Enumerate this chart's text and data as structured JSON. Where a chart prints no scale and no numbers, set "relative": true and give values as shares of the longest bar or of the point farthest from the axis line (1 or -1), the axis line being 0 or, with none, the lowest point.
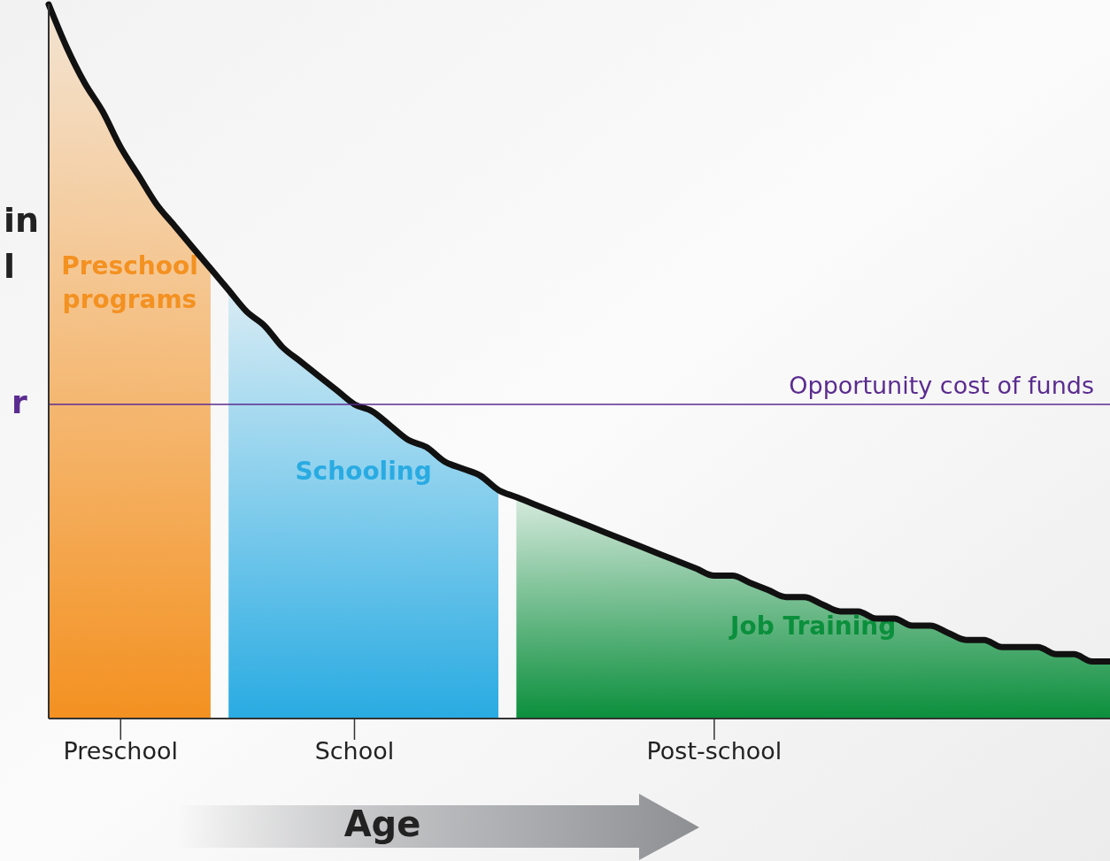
{
  "chart_data": {
    "type": "area",
    "relative": true,
    "ylabel": "in\nl",
    "xlabel": "Age",
    "categories": [
      null,
      null,
      null,
      null,
      "Preschool",
      null,
      null,
      null,
      null,
      null,
      null,
      null,
      null,
      null,
      null,
      null,
      null,
      "School",
      null,
      null,
      null,
      null,
      null,
      null,
      null,
      null,
      null,
      null,
      null,
      null,
      null,
      null,
      null,
      null,
      null,
      null,
      null,
      "Post-school",
      null,
      null,
      null,
      null,
      null,
      null,
      null,
      null,
      null,
      null,
      null,
      null,
      null,
      null,
      null,
      null,
      null,
      null,
      null,
      null,
      null,
      null
    ],
    "series": [
      {
        "name": "Preschool programs",
        "color": "#f39121",
        "values": [
          1.0,
          0.94,
          0.89,
          0.85,
          0.8,
          0.76,
          0.72,
          0.69,
          0.66,
          0.63,
          null,
          null,
          null,
          null,
          null,
          null,
          null,
          null,
          null,
          null,
          null,
          null,
          null,
          null,
          null,
          null,
          null,
          null,
          null,
          null,
          null,
          null,
          null,
          null,
          null,
          null,
          null,
          null,
          null,
          null,
          null,
          null,
          null,
          null,
          null,
          null,
          null,
          null,
          null,
          null,
          null,
          null,
          null,
          null,
          null,
          null,
          null,
          null,
          null,
          null
        ]
      },
      {
        "name": "Schooling",
        "color": "#29abe2",
        "values": [
          null,
          null,
          null,
          null,
          null,
          null,
          null,
          null,
          null,
          null,
          0.6,
          0.57,
          0.55,
          0.52,
          0.5,
          0.48,
          0.46,
          0.44,
          0.43,
          0.41,
          0.39,
          0.38,
          0.36,
          0.35,
          0.34,
          0.32,
          null,
          null,
          null,
          null,
          null,
          null,
          null,
          null,
          null,
          null,
          null,
          null,
          null,
          null,
          null,
          null,
          null,
          null,
          null,
          null,
          null,
          null,
          null,
          null,
          null,
          null,
          null,
          null,
          null,
          null,
          null,
          null,
          null,
          null
        ]
      },
      {
        "name": "Job Training",
        "color": "#0b8f3c",
        "values": [
          null,
          null,
          null,
          null,
          null,
          null,
          null,
          null,
          null,
          null,
          null,
          null,
          null,
          null,
          null,
          null,
          null,
          null,
          null,
          null,
          null,
          null,
          null,
          null,
          null,
          null,
          0.31,
          0.3,
          0.29,
          0.28,
          0.27,
          0.26,
          0.25,
          0.24,
          0.23,
          0.22,
          0.21,
          0.2,
          0.2,
          0.19,
          0.18,
          0.17,
          0.17,
          0.16,
          0.15,
          0.15,
          0.14,
          0.14,
          0.13,
          0.13,
          0.12,
          0.11,
          0.11,
          0.1,
          0.1,
          0.1,
          0.09,
          0.09,
          0.08,
          0.08
        ]
      },
      {
        "type": "line",
        "color": "#111111",
        "values": [
          1.0,
          0.94,
          0.89,
          0.85,
          0.8,
          0.76,
          0.72,
          0.69,
          0.66,
          0.63,
          0.6,
          0.57,
          0.55,
          0.52,
          0.5,
          0.48,
          0.46,
          0.44,
          0.43,
          0.41,
          0.39,
          0.38,
          0.36,
          0.35,
          0.34,
          0.32,
          0.31,
          0.3,
          0.29,
          0.28,
          0.27,
          0.26,
          0.25,
          0.24,
          0.23,
          0.22,
          0.21,
          0.2,
          0.2,
          0.19,
          0.18,
          0.17,
          0.17,
          0.16,
          0.15,
          0.15,
          0.14,
          0.14,
          0.13,
          0.13,
          0.12,
          0.11,
          0.11,
          0.1,
          0.1,
          0.1,
          0.09,
          0.09,
          0.08,
          0.08
        ]
      }
    ],
    "ref_lines": [
      {
        "axis": "y",
        "value": 0.44,
        "label": "Opportunity cost of funds",
        "color": "#5b2c8f"
      }
    ],
    "annotations": [
      "r"
    ]
  }
}
